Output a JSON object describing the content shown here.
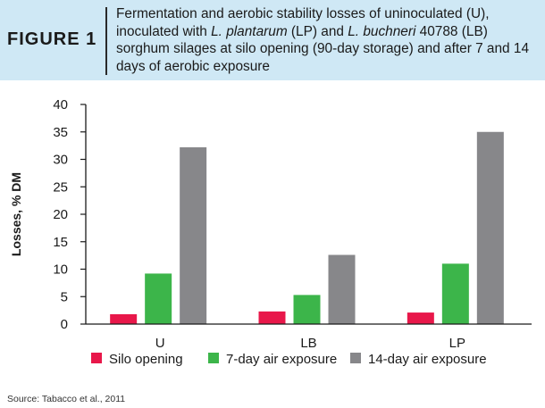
{
  "header": {
    "figure_label": "FIGURE 1",
    "caption": [
      {
        "t": "Fermentation and aerobic stability losses of uninoculated (U), inoculated with ",
        "i": false
      },
      {
        "t": "L. plantarum",
        "i": true
      },
      {
        "t": " (LP) and ",
        "i": false
      },
      {
        "t": "L. buchneri",
        "i": true
      },
      {
        "t": " 40788 (LB) sorghum silages at silo opening (90-day storage) and after 7 and 14 days of aerobic exposure",
        "i": false
      }
    ]
  },
  "source": "Source: Tabacco et al., 2011",
  "chart_data": {
    "type": "bar",
    "categories": [
      "U",
      "LB",
      "LP"
    ],
    "series": [
      {
        "name": "Silo opening",
        "color": "#e8174a",
        "values": [
          1.8,
          2.3,
          2.1
        ]
      },
      {
        "name": "7-day air exposure",
        "color": "#3cb54a",
        "values": [
          9.2,
          5.3,
          11.0
        ]
      },
      {
        "name": "14-day air exposure",
        "color": "#87878a",
        "values": [
          32.2,
          12.6,
          35.0
        ]
      }
    ],
    "ylabel": "Losses, % DM",
    "ylim": [
      0,
      40
    ],
    "yticks": [
      0,
      5,
      10,
      15,
      20,
      25,
      30,
      35,
      40
    ],
    "grid": false,
    "legend_position": "bottom"
  }
}
